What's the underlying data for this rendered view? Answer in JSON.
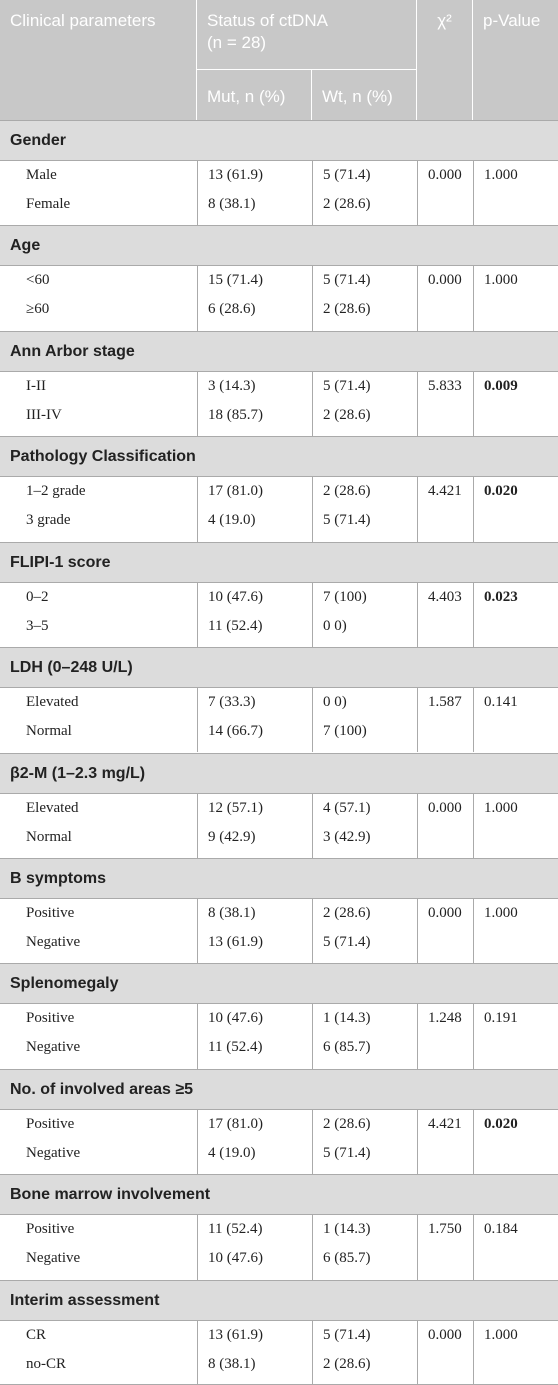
{
  "header": {
    "col1": "Clinical parameters",
    "col2": "Status of ctDNA (n = 28)",
    "col3": "χ²",
    "col4": "p-Value",
    "sub1": "Mut, n (%)",
    "sub2": "Wt, n (%)"
  },
  "groups": [
    {
      "name": "Gender",
      "rows": [
        [
          "Male",
          "13 (61.9)",
          "5 (71.4)"
        ],
        [
          "Female",
          "8 (38.1)",
          "2 (28.6)"
        ]
      ],
      "chi2": "0.000",
      "p": "1.000",
      "p_bold": false
    },
    {
      "name": "Age",
      "rows": [
        [
          "<60",
          "15 (71.4)",
          "5 (71.4)"
        ],
        [
          "≥60",
          "6 (28.6)",
          "2 (28.6)"
        ]
      ],
      "chi2": "0.000",
      "p": "1.000",
      "p_bold": false
    },
    {
      "name": "Ann Arbor stage",
      "rows": [
        [
          "I-II",
          "3 (14.3)",
          "5 (71.4)"
        ],
        [
          "III-IV",
          "18 (85.7)",
          "2 (28.6)"
        ]
      ],
      "chi2": "5.833",
      "p": "0.009",
      "p_bold": true
    },
    {
      "name": "Pathology Classification",
      "rows": [
        [
          "1–2 grade",
          "17 (81.0)",
          "2 (28.6)"
        ],
        [
          "3 grade",
          "4 (19.0)",
          "5 (71.4)"
        ]
      ],
      "chi2": "4.421",
      "p": "0.020",
      "p_bold": true
    },
    {
      "name": "FLIPI-1 score",
      "rows": [
        [
          "0–2",
          "10 (47.6)",
          "7 (100)"
        ],
        [
          "3–5",
          "11 (52.4)",
          "0 0)"
        ]
      ],
      "chi2": "4.403",
      "p": "0.023",
      "p_bold": true
    },
    {
      "name": "LDH (0–248 U/L)",
      "rows": [
        [
          "Elevated",
          "7 (33.3)",
          "0 0)"
        ],
        [
          "Normal",
          "14 (66.7)",
          "7 (100)"
        ]
      ],
      "chi2": "1.587",
      "p": "0.141",
      "p_bold": false
    },
    {
      "name": "β2-M (1–2.3 mg/L)",
      "rows": [
        [
          "Elevated",
          "12 (57.1)",
          "4 (57.1)"
        ],
        [
          "Normal",
          "9 (42.9)",
          "3 (42.9)"
        ]
      ],
      "chi2": "0.000",
      "p": "1.000",
      "p_bold": false
    },
    {
      "name": "B symptoms",
      "rows": [
        [
          "Positive",
          "8 (38.1)",
          "2 (28.6)"
        ],
        [
          "Negative",
          "13 (61.9)",
          "5 (71.4)"
        ]
      ],
      "chi2": "0.000",
      "p": "1.000",
      "p_bold": false
    },
    {
      "name": "Splenomegaly",
      "rows": [
        [
          "Positive",
          "10 (47.6)",
          "1 (14.3)"
        ],
        [
          "Negative",
          "11 (52.4)",
          "6 (85.7)"
        ]
      ],
      "chi2": "1.248",
      "p": "0.191",
      "p_bold": false
    },
    {
      "name": "No. of involved areas ≥5",
      "rows": [
        [
          "Positive",
          "17 (81.0)",
          "2 (28.6)"
        ],
        [
          "Negative",
          "4 (19.0)",
          "5 (71.4)"
        ]
      ],
      "chi2": "4.421",
      "p": "0.020",
      "p_bold": true
    },
    {
      "name": "Bone marrow involvement",
      "rows": [
        [
          "Positive",
          "11 (52.4)",
          "1 (14.3)"
        ],
        [
          "Negative",
          "10 (47.6)",
          "6 (85.7)"
        ]
      ],
      "chi2": "1.750",
      "p": "0.184",
      "p_bold": false
    },
    {
      "name": "Interim assessment",
      "rows": [
        [
          "CR",
          "13 (61.9)",
          "5 (71.4)"
        ],
        [
          "no-CR",
          "8 (38.1)",
          "2 (28.6)"
        ]
      ],
      "chi2": "0.000",
      "p": "1.000",
      "p_bold": false
    }
  ]
}
